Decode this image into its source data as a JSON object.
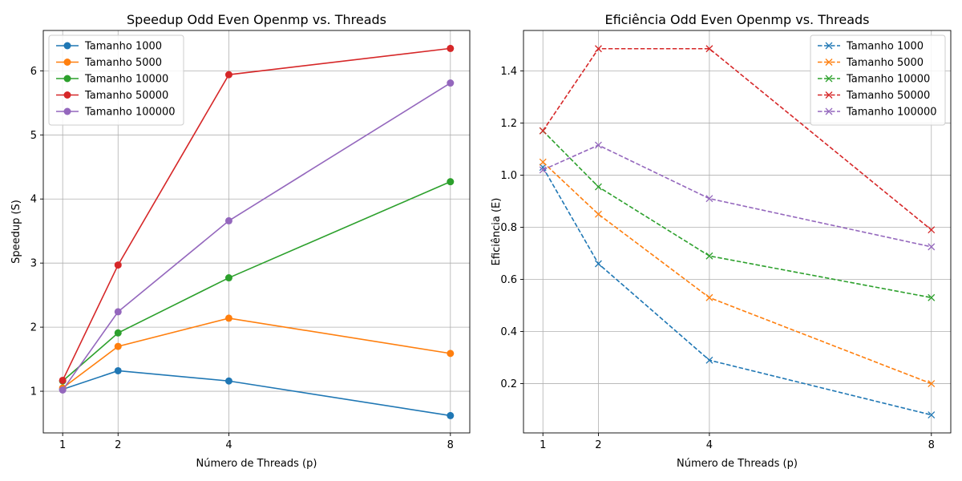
{
  "chart_data": [
    {
      "type": "line",
      "title": "Speedup Odd Even Openmp vs. Threads",
      "xlabel": "Número de Threads (p)",
      "ylabel": "Speedup (S)",
      "x": [
        1,
        2,
        4,
        8
      ],
      "xticks": [
        "1",
        "2",
        "4",
        "8"
      ],
      "yticks": [
        1,
        2,
        3,
        4,
        5,
        6
      ],
      "xlim": [
        0.65,
        8.35
      ],
      "ylim": [
        0.35,
        6.63
      ],
      "grid": true,
      "legend_position": "upper left",
      "marker": "circle",
      "line_style": "solid",
      "series": [
        {
          "name": "Tamanho 1000",
          "color": "#1f77b4",
          "values": [
            1.03,
            1.32,
            1.16,
            0.62
          ]
        },
        {
          "name": "Tamanho 5000",
          "color": "#ff7f0e",
          "values": [
            1.05,
            1.7,
            2.14,
            1.59
          ]
        },
        {
          "name": "Tamanho 10000",
          "color": "#2ca02c",
          "values": [
            1.16,
            1.91,
            2.77,
            4.27
          ]
        },
        {
          "name": "Tamanho 50000",
          "color": "#d62728",
          "values": [
            1.17,
            2.97,
            5.94,
            6.35
          ]
        },
        {
          "name": "Tamanho 100000",
          "color": "#9467bd",
          "values": [
            1.02,
            2.24,
            3.66,
            5.81
          ]
        }
      ]
    },
    {
      "type": "line",
      "title": "Eficiência Odd Even Openmp vs. Threads",
      "xlabel": "Número de Threads (p)",
      "ylabel": "Eficiência (E)",
      "x": [
        1,
        2,
        4,
        8
      ],
      "xticks": [
        "1",
        "2",
        "4",
        "8"
      ],
      "yticks": [
        0.2,
        0.4,
        0.6,
        0.8,
        1.0,
        1.2,
        1.4
      ],
      "ytick_labels": [
        "0.2",
        "0.4",
        "0.6",
        "0.8",
        "1.0",
        "1.2",
        "1.4"
      ],
      "xlim": [
        0.65,
        8.35
      ],
      "ylim": [
        0.011,
        1.555
      ],
      "grid": true,
      "legend_position": "upper right",
      "marker": "x",
      "line_style": "dashed",
      "series": [
        {
          "name": "Tamanho 1000",
          "color": "#1f77b4",
          "values": [
            1.03,
            0.66,
            0.29,
            0.08
          ]
        },
        {
          "name": "Tamanho 5000",
          "color": "#ff7f0e",
          "values": [
            1.05,
            0.85,
            0.53,
            0.2
          ]
        },
        {
          "name": "Tamanho 10000",
          "color": "#2ca02c",
          "values": [
            1.17,
            0.955,
            0.69,
            0.53
          ]
        },
        {
          "name": "Tamanho 50000",
          "color": "#d62728",
          "values": [
            1.17,
            1.485,
            1.485,
            0.79
          ]
        },
        {
          "name": "Tamanho 100000",
          "color": "#9467bd",
          "values": [
            1.02,
            1.115,
            0.91,
            0.725
          ]
        }
      ]
    }
  ]
}
